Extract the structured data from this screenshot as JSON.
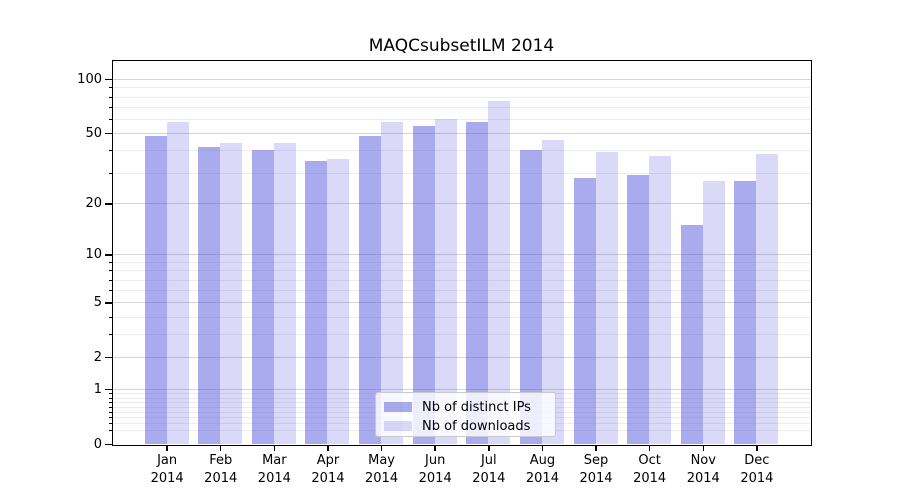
{
  "chart_data": {
    "type": "bar",
    "title": "MAQCsubsetILM 2014",
    "year": "2014",
    "categories": [
      "Jan",
      "Feb",
      "Mar",
      "Apr",
      "May",
      "Jun",
      "Jul",
      "Aug",
      "Sep",
      "Oct",
      "Nov",
      "Dec"
    ],
    "series": [
      {
        "name": "Nb of distinct IPs",
        "color": "rgba(85,85,221,0.5)",
        "hex_over_white": "#aaaaee",
        "values": [
          48,
          42,
          40,
          35,
          48,
          55,
          58,
          40,
          28,
          29,
          15,
          27
        ]
      },
      {
        "name": "Nb of downloads",
        "color": "rgba(85,85,221,0.22)",
        "hex_over_white": "#dcdcf8",
        "values": [
          58,
          44,
          44,
          36,
          58,
          60,
          76,
          46,
          39,
          37,
          27,
          38
        ]
      }
    ],
    "yscale": "log1p",
    "yticks": [
      0,
      1,
      2,
      5,
      10,
      20,
      50,
      100
    ],
    "minor_yticks": [
      0.2,
      0.3,
      0.4,
      0.5,
      0.6,
      0.7,
      0.8,
      0.9,
      3,
      4,
      6,
      7,
      8,
      9,
      30,
      40,
      60,
      70,
      80,
      90
    ],
    "ylim_headroom": 1.05,
    "grid": true,
    "legend_position": "bottom-center",
    "xlabel": "",
    "ylabel": ""
  },
  "colors": {
    "major_grid": "#d4d4d4",
    "minor_grid": "#ececec",
    "spine": "#000000",
    "text": "#000000"
  }
}
